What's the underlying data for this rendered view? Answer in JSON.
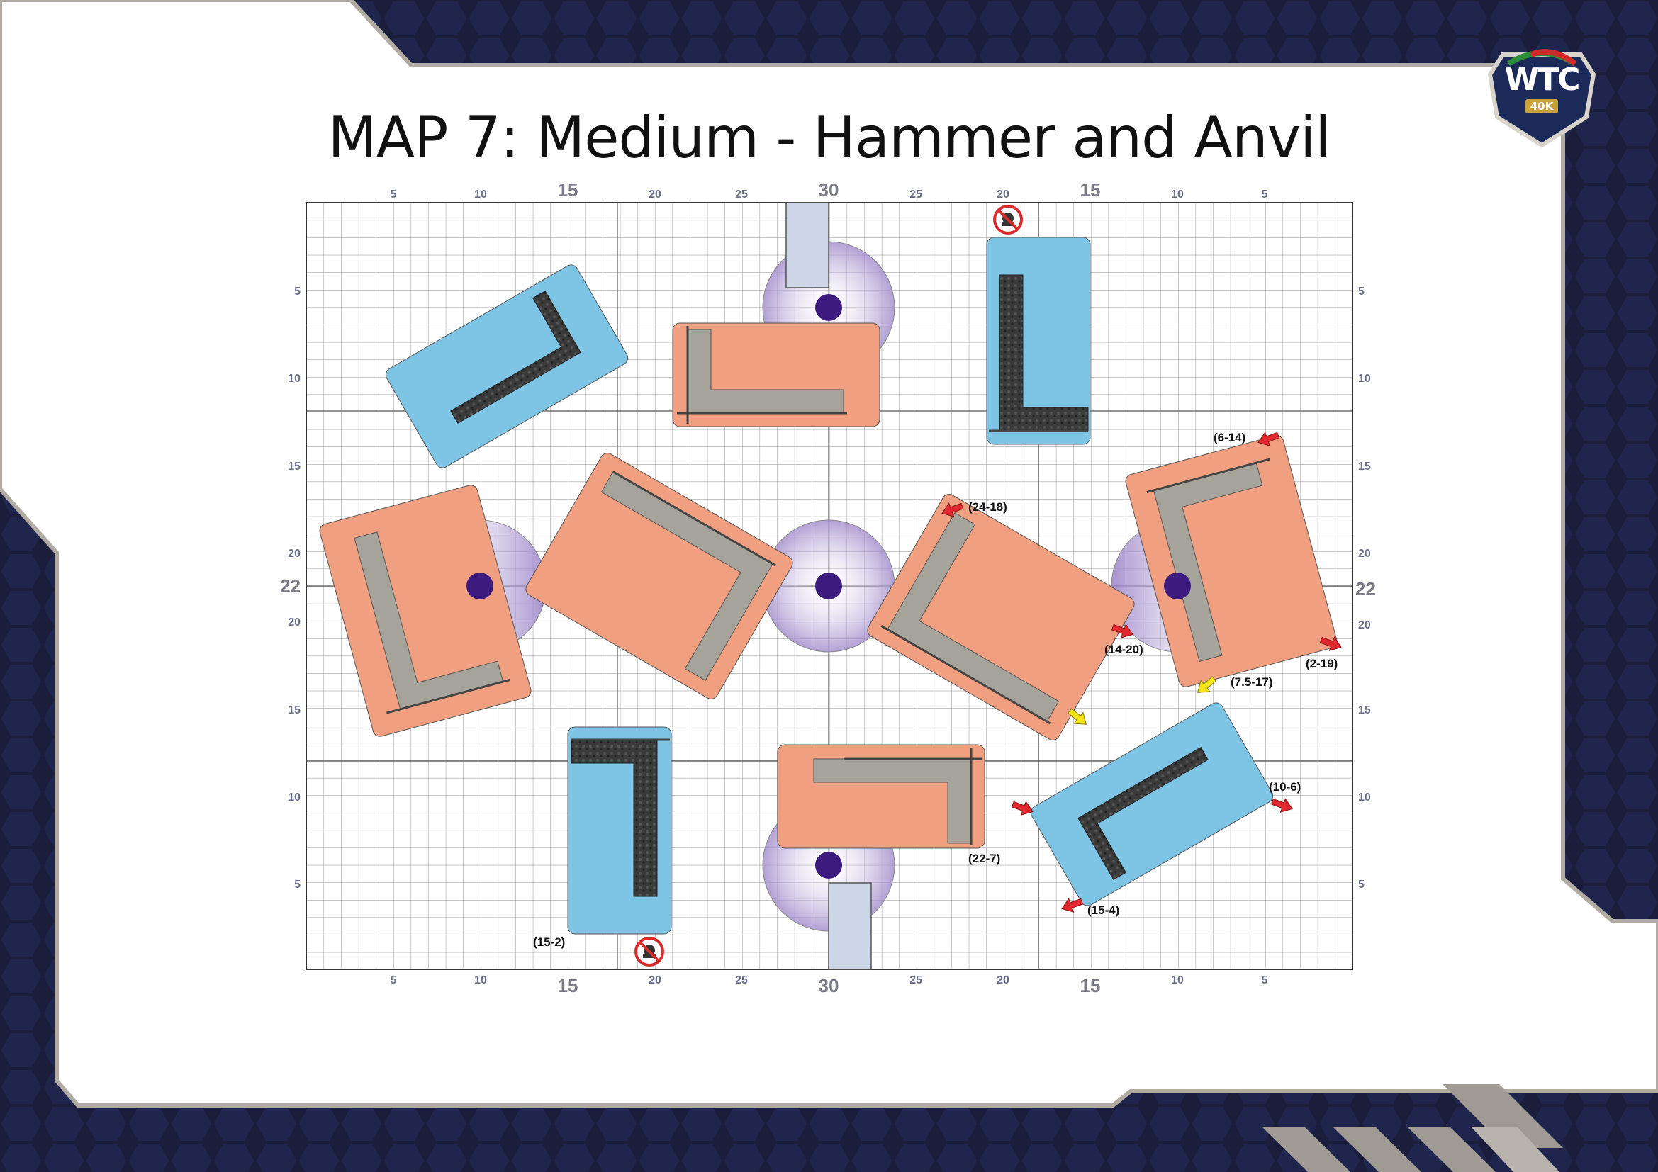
{
  "title": "MAP 7: Medium - Hammer and Anvil",
  "logo": {
    "text": "WTC",
    "sub": "40K"
  },
  "axis_labels": {
    "top": [
      "5",
      "10",
      "15",
      "20",
      "25",
      "30",
      "25",
      "20",
      "15",
      "10",
      "5"
    ],
    "bottom": [
      "5",
      "10",
      "15",
      "20",
      "25",
      "30",
      "25",
      "20",
      "15",
      "10",
      "5"
    ],
    "left": [
      "5",
      "10",
      "15",
      "20",
      "22",
      "20",
      "15",
      "10",
      "5"
    ],
    "right": [
      "5",
      "10",
      "15",
      "20",
      "22",
      "20",
      "15",
      "10",
      "5"
    ]
  },
  "coordinate_labels": [
    "(6-14)",
    "(24-18)",
    "(14-20)",
    "(2-19)",
    "(7.5-17)",
    "(10-6)",
    "(22-7)",
    "(15-4)",
    "(15-2)"
  ],
  "colors": {
    "orange_terrain": "#f0a080",
    "blue_terrain": "#7ec4e4",
    "wall_grey": "#a6a49a",
    "ruin_dark": "#3b3b3b",
    "objective": "#3c1a7e",
    "objective_zone": "#b9a8d6",
    "arrow_red": "#e0282e",
    "arrow_yellow": "#f2e418",
    "background_navy": "#1b1e3a"
  },
  "icons": [
    "objective-marker-icon",
    "no-vehicle-icon",
    "red-arrow-icon",
    "yellow-arrow-icon",
    "wtc-logo-icon"
  ]
}
